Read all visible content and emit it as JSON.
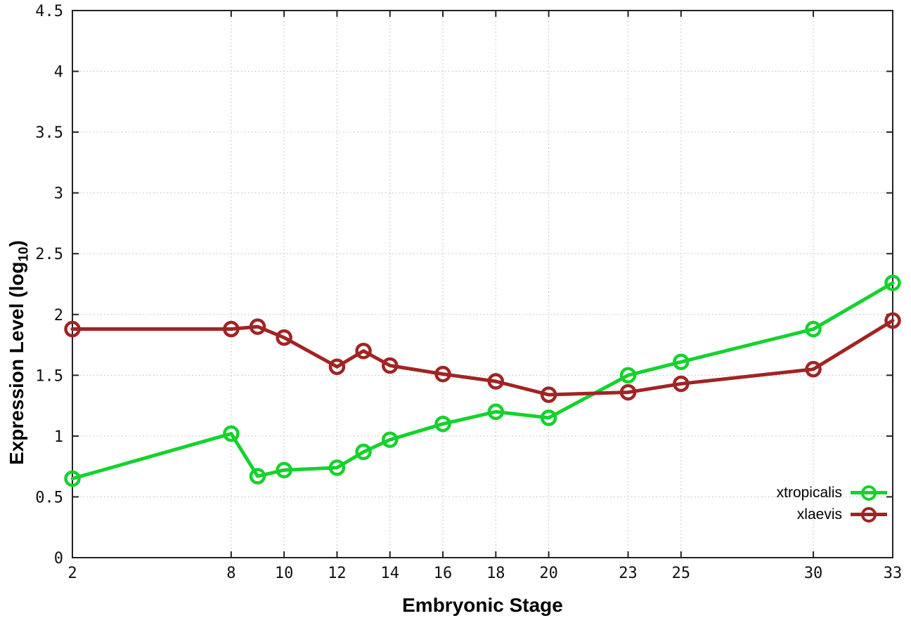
{
  "chart_data": {
    "type": "line",
    "title": "",
    "xlabel": "Embryonic Stage",
    "ylabel": "Expression Level (log10)",
    "ylabel_parts": {
      "pre": "Expression Level (log",
      "sub": "10",
      "post": ")"
    },
    "x": [
      2,
      8,
      9,
      10,
      12,
      13,
      14,
      16,
      18,
      20,
      23,
      25,
      30,
      33
    ],
    "x_tick_values": [
      2,
      8,
      10,
      12,
      14,
      16,
      18,
      20,
      23,
      25,
      30,
      33
    ],
    "x_tick_labels": [
      "2",
      "8",
      "10",
      "12",
      "14",
      "16",
      "18",
      "20",
      "23",
      "25",
      "30",
      "33"
    ],
    "y_tick_values": [
      0,
      0.5,
      1,
      1.5,
      2,
      2.5,
      3,
      3.5,
      4,
      4.5
    ],
    "y_tick_labels": [
      "0",
      "0.5",
      "1",
      "1.5",
      "2",
      "2.5",
      "3",
      "3.5",
      "4",
      "4.5"
    ],
    "xlim": [
      2,
      33
    ],
    "ylim": [
      0,
      4.5
    ],
    "grid": true,
    "legend_position": "bottom-right",
    "series": [
      {
        "name": "xtropicalis",
        "color": "#15d22d",
        "values": [
          0.65,
          1.02,
          0.67,
          0.72,
          0.74,
          0.87,
          0.97,
          1.1,
          1.2,
          1.15,
          1.5,
          1.61,
          1.88,
          2.26
        ]
      },
      {
        "name": "xlaevis",
        "color": "#a02424",
        "values": [
          1.88,
          1.88,
          1.9,
          1.81,
          1.57,
          1.7,
          1.58,
          1.51,
          1.45,
          1.34,
          1.36,
          1.43,
          1.55,
          1.95
        ]
      }
    ]
  },
  "colors": {
    "axis": "#222222",
    "grid": "#b9b9b9",
    "background": "#ffffff",
    "text": "#000000"
  }
}
